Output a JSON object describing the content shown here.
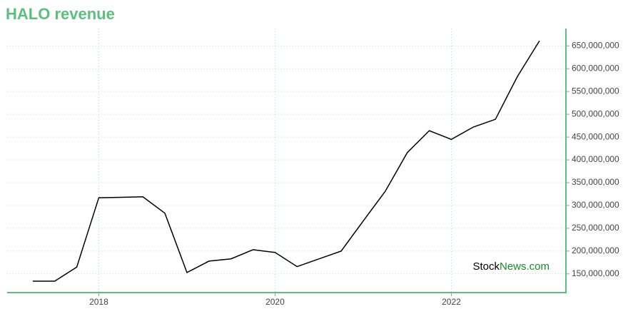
{
  "chart_data": {
    "type": "line",
    "title": "HALO revenue",
    "x": [
      2017.25,
      2017.5,
      2017.75,
      2018.0,
      2018.25,
      2018.5,
      2018.75,
      2019.0,
      2019.25,
      2019.5,
      2019.75,
      2020.0,
      2020.25,
      2020.5,
      2020.75,
      2021.0,
      2021.25,
      2021.5,
      2021.75,
      2022.0,
      2022.25,
      2022.5,
      2022.75,
      2023.0
    ],
    "values": [
      134000000,
      134000000,
      165000000,
      317000000,
      318000000,
      319000000,
      283000000,
      153000000,
      178000000,
      183000000,
      203000000,
      197000000,
      166000000,
      183000000,
      200000000,
      266000000,
      331000000,
      416000000,
      464000000,
      445000000,
      472000000,
      489000000,
      583000000,
      661000000
    ],
    "color": "#000000",
    "xlim": [
      2016.96,
      2023.3
    ],
    "xticks": [
      2018,
      2020,
      2022
    ],
    "ylim": [
      109000000,
      688000000
    ],
    "yticks": [
      {
        "value": 150000000,
        "label": "150,000,000"
      },
      {
        "value": 200000000,
        "label": "200,000,000"
      },
      {
        "value": 250000000,
        "label": "250,000,000"
      },
      {
        "value": 300000000,
        "label": "300,000,000"
      },
      {
        "value": 350000000,
        "label": "350,000,000"
      },
      {
        "value": 400000000,
        "label": "400,000,000"
      },
      {
        "value": 450000000,
        "label": "450,000,000"
      },
      {
        "value": 500000000,
        "label": "500,000,000"
      },
      {
        "value": 550000000,
        "label": "550,000,000"
      },
      {
        "value": 600000000,
        "label": "600,000,000"
      },
      {
        "value": 650000000,
        "label": "650,000,000"
      }
    ],
    "grid": true,
    "axis_color": "#5cbf7f",
    "watermark": [
      "Stock",
      "News.com"
    ]
  }
}
